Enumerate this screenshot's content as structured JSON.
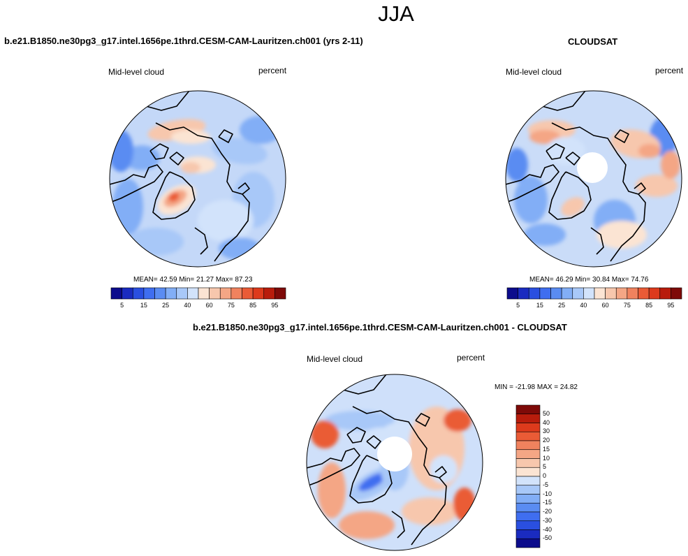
{
  "figure": {
    "season_title": "JJA",
    "model_case_title": "b.e21.B1850.ne30pg3_g17.intel.1656pe.1thrd.CESM-CAM-Lauritzen.ch001 (yrs 2-11)",
    "obs_title": "CLOUDSAT",
    "diff_title": "b.e21.B1850.ne30pg3_g17.intel.1656pe.1thrd.CESM-CAM-Lauritzen.ch001 - CLOUDSAT"
  },
  "panels": {
    "model": {
      "variable": "Mid-level cloud",
      "units": "percent",
      "mean_text": "MEAN=  42.59  Min=  21.27  Max=  87.23"
    },
    "obs": {
      "variable": "Mid-level cloud",
      "units": "percent",
      "mean_text": "MEAN=  46.29  Min=  30.84  Max=  74.76"
    },
    "diff": {
      "variable": "Mid-level cloud",
      "units": "percent",
      "minmax_text": "MIN = -21.98 MAX =  24.82"
    }
  },
  "chart_data": [
    {
      "type": "heatmap",
      "projection": "north-polar-stereographic",
      "title": "b.e21.B1850.ne30pg3_g17.intel.1656pe.1thrd.CESM-CAM-Lauritzen.ch001 (yrs 2-11)",
      "variable": "Mid-level cloud",
      "units": "percent",
      "mean": 42.59,
      "min": 21.27,
      "max": 87.23,
      "colorbar_levels": [
        5,
        10,
        15,
        20,
        25,
        30,
        40,
        50,
        60,
        70,
        75,
        80,
        85,
        90,
        95
      ],
      "colorbar_tick_labels": [
        "5",
        "15",
        "25",
        "40",
        "60",
        "75",
        "85",
        "95"
      ],
      "colorbar_colors": [
        "#0c0c8c",
        "#1a2bc0",
        "#2a4fe0",
        "#3f6ef0",
        "#5a8cf2",
        "#82aef6",
        "#a8c8f8",
        "#d2e3fb",
        "#fbe4d3",
        "#f7c7ad",
        "#f4a685",
        "#f0825e",
        "#ea5b36",
        "#dd3a1c",
        "#b81c0c",
        "#7e0a08"
      ]
    },
    {
      "type": "heatmap",
      "projection": "north-polar-stereographic",
      "title": "CLOUDSAT",
      "variable": "Mid-level cloud",
      "units": "percent",
      "mean": 46.29,
      "min": 30.84,
      "max": 74.76,
      "missing_region": "polar cap (north of ~82N)",
      "colorbar_levels": [
        5,
        10,
        15,
        20,
        25,
        30,
        40,
        50,
        60,
        70,
        75,
        80,
        85,
        90,
        95
      ],
      "colorbar_tick_labels": [
        "5",
        "15",
        "25",
        "40",
        "60",
        "75",
        "85",
        "95"
      ],
      "colorbar_colors": [
        "#0c0c8c",
        "#1a2bc0",
        "#2a4fe0",
        "#3f6ef0",
        "#5a8cf2",
        "#82aef6",
        "#a8c8f8",
        "#d2e3fb",
        "#fbe4d3",
        "#f7c7ad",
        "#f4a685",
        "#f0825e",
        "#ea5b36",
        "#dd3a1c",
        "#b81c0c",
        "#7e0a08"
      ]
    },
    {
      "type": "heatmap",
      "projection": "north-polar-stereographic",
      "title": "b.e21.B1850.ne30pg3_g17.intel.1656pe.1thrd.CESM-CAM-Lauritzen.ch001 - CLOUDSAT",
      "variable": "Mid-level cloud",
      "units": "percent",
      "min": -21.98,
      "max": 24.82,
      "colorbar_levels": [
        -50,
        -40,
        -30,
        -20,
        -15,
        -10,
        -5,
        0,
        5,
        10,
        15,
        20,
        30,
        40,
        50
      ],
      "colorbar_tick_labels": [
        "50",
        "40",
        "30",
        "20",
        "15",
        "10",
        "5",
        "0",
        "-5",
        "-10",
        "-15",
        "-20",
        "-30",
        "-40",
        "-50"
      ],
      "colorbar_colors": [
        "#7e0a08",
        "#b81c0c",
        "#dd3a1c",
        "#ea5b36",
        "#f0825e",
        "#f4a685",
        "#f7c7ad",
        "#fbe4d3",
        "#d2e3fb",
        "#a8c8f8",
        "#82aef6",
        "#5a8cf2",
        "#3f6ef0",
        "#2a4fe0",
        "#1a2bc0",
        "#0c0c8c"
      ]
    }
  ]
}
